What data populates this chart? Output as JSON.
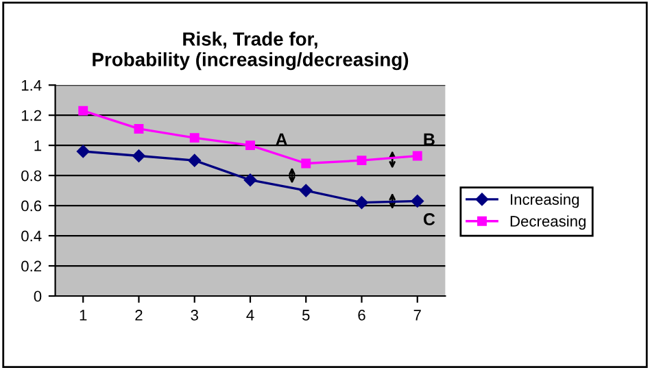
{
  "chart_data": {
    "type": "line",
    "title": "Risk, Trade for,\nProbability (increasing/decreasing)",
    "categories": [
      "1",
      "2",
      "3",
      "4",
      "5",
      "6",
      "7"
    ],
    "series": [
      {
        "name": "Increasing",
        "color": "#000080",
        "marker": "diamond",
        "values": [
          0.96,
          0.93,
          0.9,
          0.77,
          0.7,
          0.62,
          0.63
        ]
      },
      {
        "name": "Decreasing",
        "color": "#ff00ff",
        "marker": "square",
        "values": [
          1.23,
          1.11,
          1.05,
          1.0,
          0.88,
          0.9,
          0.93
        ]
      }
    ],
    "ylim": [
      0,
      1.4
    ],
    "yticks": [
      0,
      0.2,
      0.4,
      0.6,
      0.8,
      1,
      1.2,
      1.4
    ],
    "grid": "y",
    "legend": "right",
    "annotations": [
      "A",
      "B",
      "C"
    ]
  }
}
